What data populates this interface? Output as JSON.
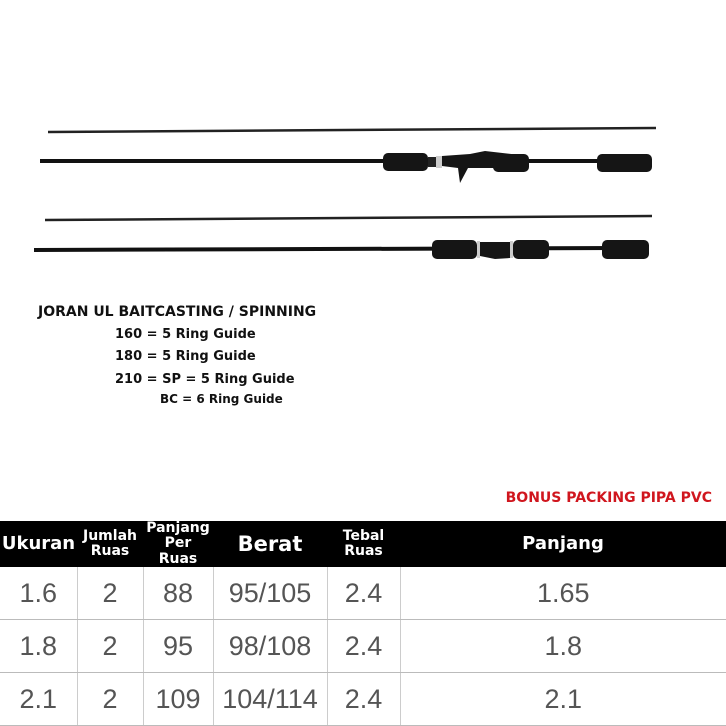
{
  "spec": {
    "title": "JORAN UL BAITCASTING / SPINNING",
    "lines": [
      "160 = 5 Ring Guide",
      "180 = 5 Ring Guide",
      "210 = SP = 5 Ring Guide"
    ],
    "subline": "BC = 6 Ring Guide"
  },
  "bonus": "BONUS PACKING PIPA PVC",
  "table": {
    "headers": [
      [
        "Ukuran"
      ],
      [
        "Jumlah",
        "Ruas"
      ],
      [
        "Panjang",
        "Per Ruas"
      ],
      [
        "Berat"
      ],
      [
        "Tebal",
        "Ruas"
      ],
      [
        "Panjang"
      ]
    ],
    "rows": [
      [
        "1.6",
        "2",
        "88",
        "95/105",
        "2.4",
        "1.65"
      ],
      [
        "1.8",
        "2",
        "95",
        "98/108",
        "2.4",
        "1.8"
      ],
      [
        "2.1",
        "2",
        "109",
        "104/114",
        "2.4",
        "2.1"
      ]
    ]
  },
  "colors": {
    "bonus": "#d0161e",
    "header_bg": "#000000"
  }
}
